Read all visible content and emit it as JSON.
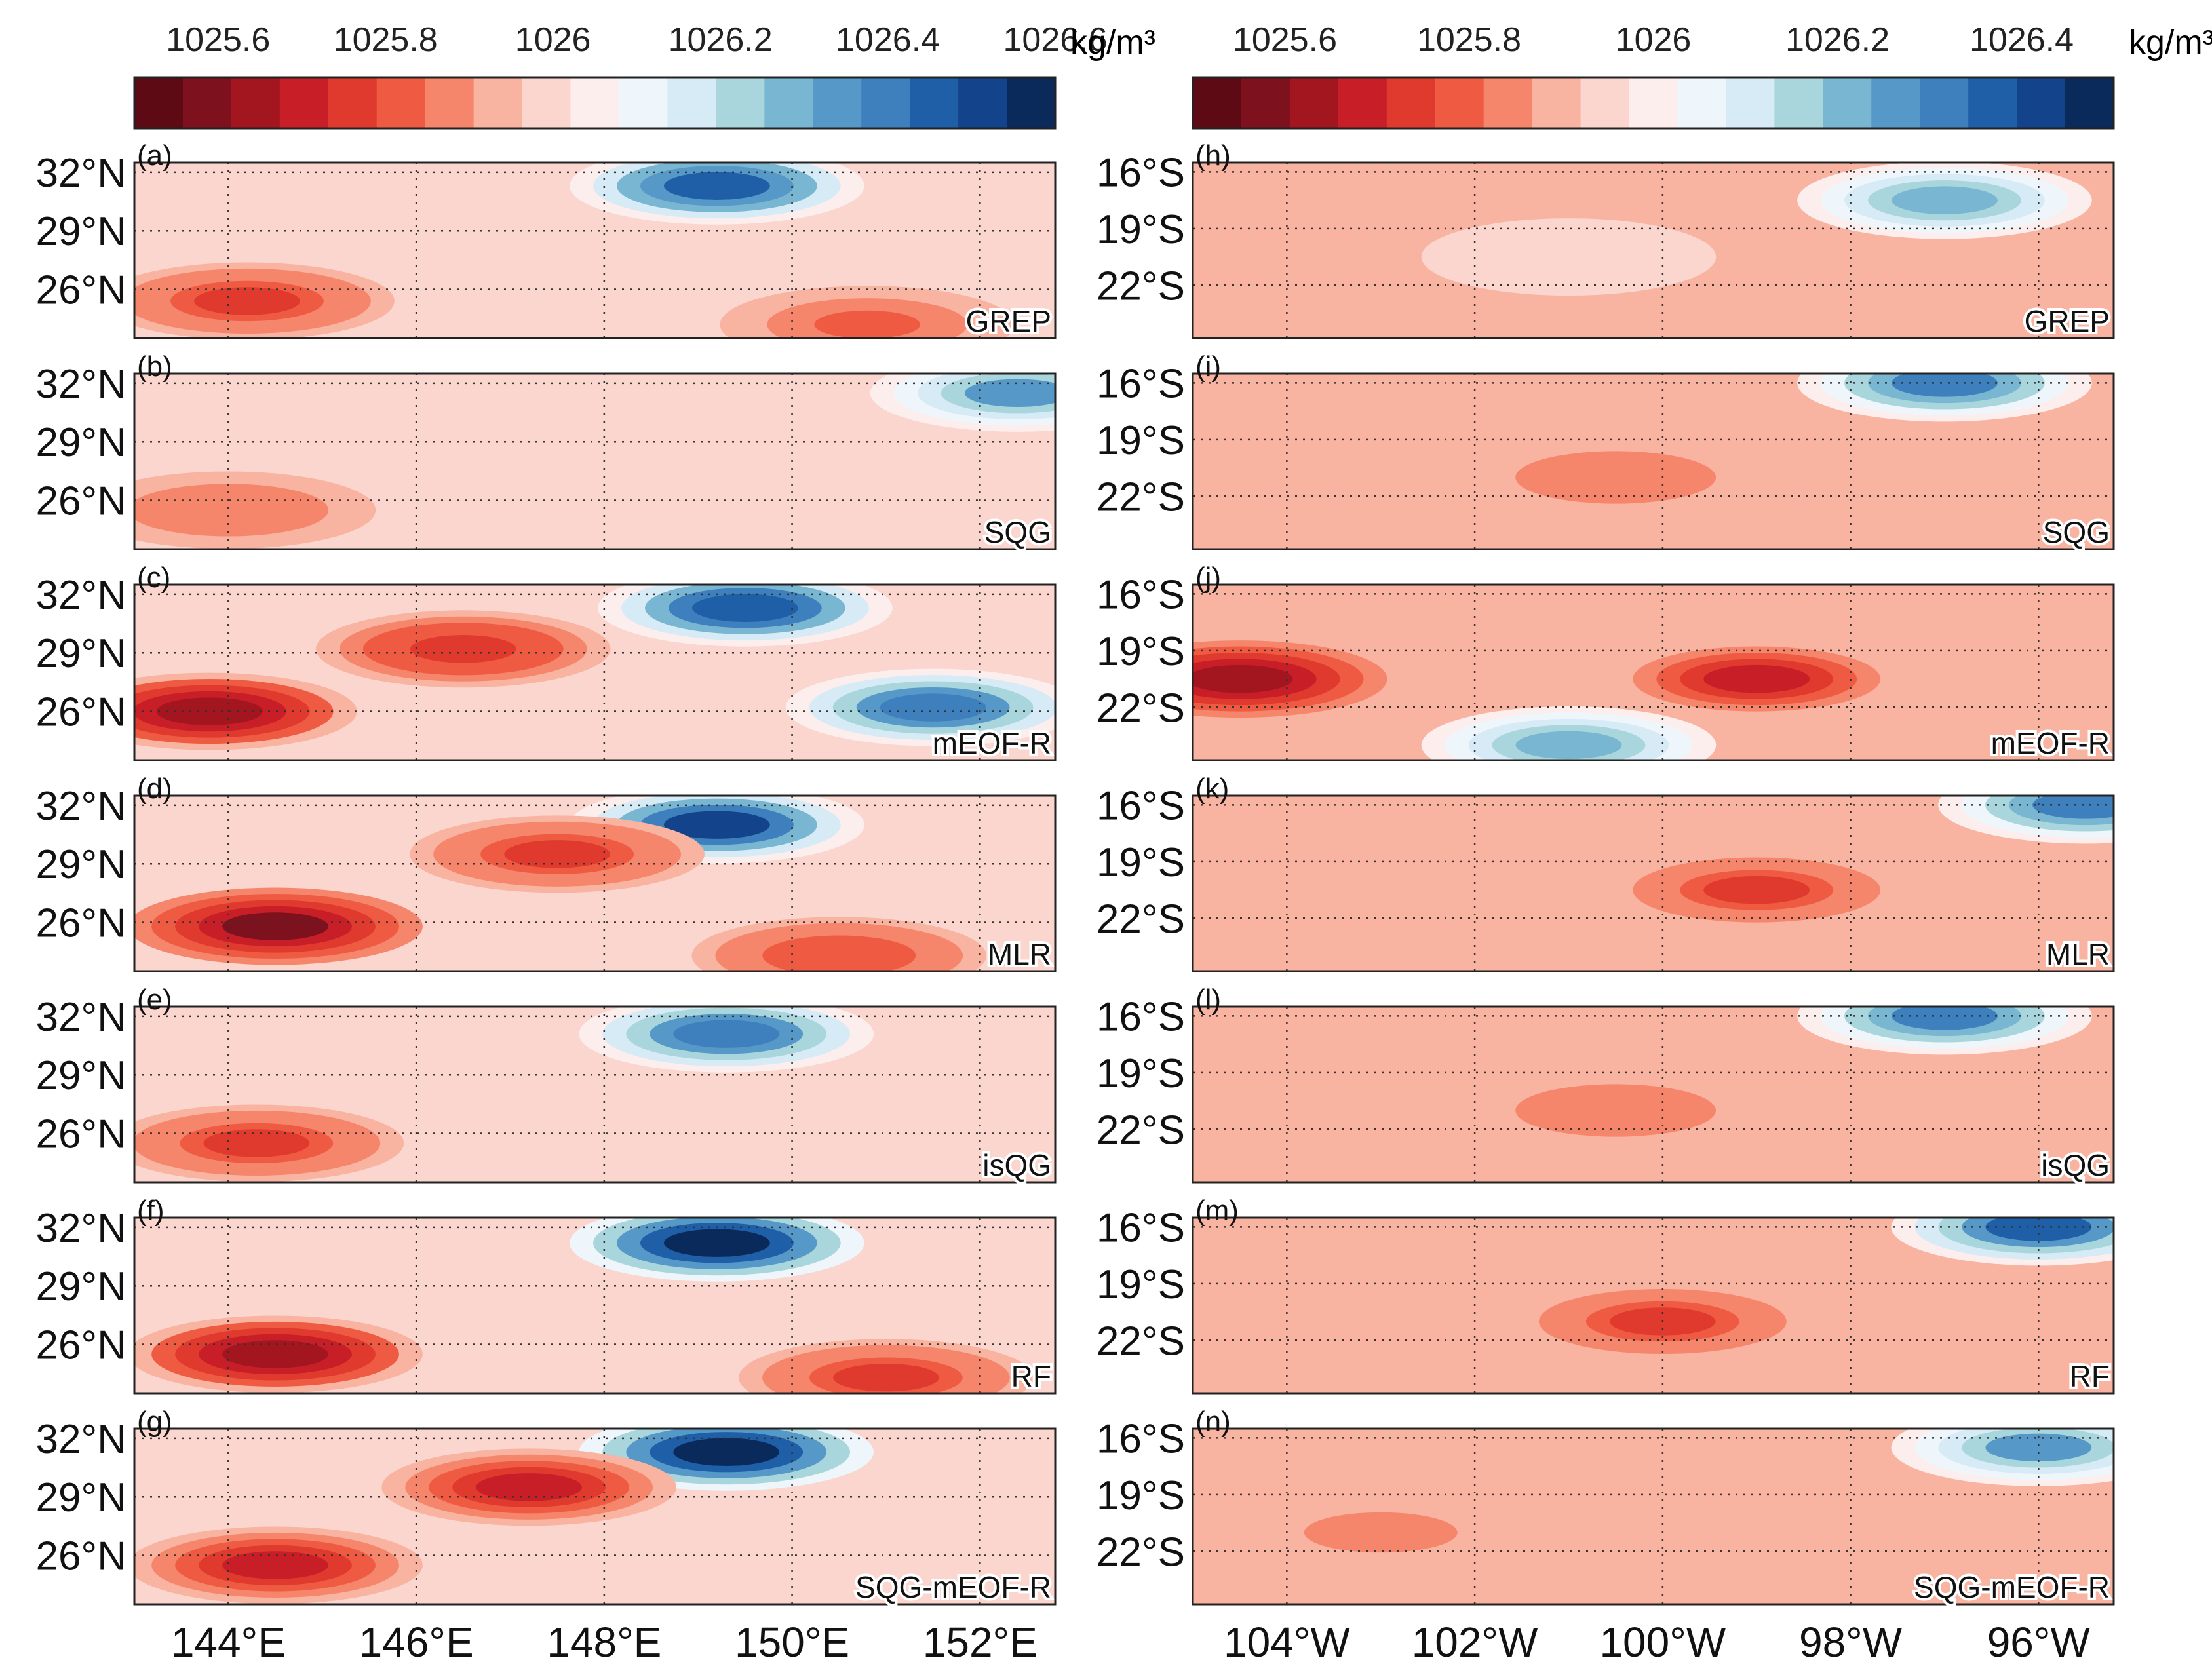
{
  "colorbar": {
    "unit": "kg/m³",
    "colors": [
      "#5e0a14",
      "#7d111d",
      "#a3161f",
      "#c81e27",
      "#e03a2f",
      "#ef5b42",
      "#f5856b",
      "#f8b3a1",
      "#fbd6cf",
      "#fdeeee",
      "#eef6fb",
      "#d6ebf5",
      "#a9d6dc",
      "#79b6d2",
      "#5699c8",
      "#3d80bd",
      "#1f5fa8",
      "#13438a",
      "#0a2a5c"
    ],
    "left": {
      "ticks": [
        1025.6,
        1025.8,
        1026,
        1026.2,
        1026.4,
        1026.6
      ],
      "tick_labels": [
        "1025.6",
        "1025.8",
        "1026",
        "1026.2",
        "1026.4",
        "1026.6"
      ],
      "min": 1025.5,
      "max": 1026.6
    },
    "right": {
      "ticks": [
        1025.6,
        1025.8,
        1026,
        1026.2,
        1026.4
      ],
      "tick_labels": [
        "1025.6",
        "1025.8",
        "1026",
        "1026.2",
        "1026.4"
      ],
      "min": 1025.5,
      "max": 1026.5
    }
  },
  "left_axes": {
    "x_ticks": [
      144,
      146,
      148,
      150,
      152
    ],
    "x_tick_labels": [
      "144°E",
      "146°E",
      "148°E",
      "150°E",
      "152°E"
    ],
    "y_ticks": [
      32,
      29,
      26
    ],
    "y_tick_labels": [
      "32°N",
      "29°N",
      "26°N"
    ]
  },
  "right_axes": {
    "x_ticks": [
      -104,
      -102,
      -100,
      -98,
      -96
    ],
    "x_tick_labels": [
      "104°W",
      "102°W",
      "100°W",
      "98°W",
      "96°W"
    ],
    "y_ticks": [
      -16,
      -19,
      -22
    ],
    "y_tick_labels": [
      "16°S",
      "19°S",
      "22°S"
    ]
  },
  "chart_data": [
    {
      "type": "heatmap",
      "panel": "(a)",
      "method": "GREP",
      "region": "left",
      "xlim": [
        143,
        152.8
      ],
      "ylim": [
        23.5,
        32.5
      ],
      "features": [
        {
          "lon": 149.2,
          "lat": 31.3,
          "value": 1026.45
        },
        {
          "lon": 144.2,
          "lat": 25.4,
          "value": 1025.78
        },
        {
          "lon": 150.8,
          "lat": 24.2,
          "value": 1025.82
        }
      ]
    },
    {
      "type": "heatmap",
      "panel": "(b)",
      "method": "SQG",
      "region": "left",
      "xlim": [
        143,
        152.8
      ],
      "ylim": [
        23.5,
        32.5
      ],
      "features": [
        {
          "lon": 152.4,
          "lat": 31.5,
          "value": 1026.32
        },
        {
          "lon": 144,
          "lat": 25.5,
          "value": 1025.86
        }
      ]
    },
    {
      "type": "heatmap",
      "panel": "(c)",
      "method": "mEOF-R",
      "region": "left",
      "xlim": [
        143,
        152.8
      ],
      "ylim": [
        23.5,
        32.5
      ],
      "features": [
        {
          "lon": 149.5,
          "lat": 31.3,
          "value": 1026.48
        },
        {
          "lon": 143.8,
          "lat": 26,
          "value": 1025.65
        },
        {
          "lon": 146.5,
          "lat": 29.2,
          "value": 1025.75
        },
        {
          "lon": 151.5,
          "lat": 26.2,
          "value": 1026.4
        }
      ]
    },
    {
      "type": "heatmap",
      "panel": "(d)",
      "method": "MLR",
      "region": "left",
      "xlim": [
        143,
        152.8
      ],
      "ylim": [
        23.5,
        32.5
      ],
      "features": [
        {
          "lon": 149.2,
          "lat": 31,
          "value": 1026.5
        },
        {
          "lon": 144.5,
          "lat": 25.8,
          "value": 1025.6
        },
        {
          "lon": 147.5,
          "lat": 29.5,
          "value": 1025.78
        },
        {
          "lon": 150.5,
          "lat": 24.3,
          "value": 1025.8
        }
      ]
    },
    {
      "type": "heatmap",
      "panel": "(e)",
      "method": "isQG",
      "region": "left",
      "xlim": [
        143,
        152.8
      ],
      "ylim": [
        23.5,
        32.5
      ],
      "features": [
        {
          "lon": 149.3,
          "lat": 31.1,
          "value": 1026.42
        },
        {
          "lon": 144.3,
          "lat": 25.5,
          "value": 1025.78
        }
      ]
    },
    {
      "type": "heatmap",
      "panel": "(f)",
      "method": "RF",
      "region": "left",
      "xlim": [
        143,
        152.8
      ],
      "ylim": [
        23.5,
        32.5
      ],
      "features": [
        {
          "lon": 149.2,
          "lat": 31.2,
          "value": 1026.6
        },
        {
          "lon": 144.5,
          "lat": 25.5,
          "value": 1025.65
        },
        {
          "lon": 151,
          "lat": 24.3,
          "value": 1025.78
        }
      ]
    },
    {
      "type": "heatmap",
      "panel": "(g)",
      "method": "SQG-mEOF-R",
      "region": "left",
      "xlim": [
        143,
        152.8
      ],
      "ylim": [
        23.5,
        32.5
      ],
      "features": [
        {
          "lon": 149.3,
          "lat": 31.3,
          "value": 1026.6
        },
        {
          "lon": 144.5,
          "lat": 25.5,
          "value": 1025.7
        },
        {
          "lon": 147.2,
          "lat": 29.5,
          "value": 1025.72
        }
      ]
    },
    {
      "type": "heatmap",
      "panel": "(h)",
      "method": "GREP",
      "region": "right",
      "xlim": [
        -105,
        -95.2
      ],
      "ylim": [
        -24.8,
        -15.5
      ],
      "features": [
        {
          "lon": -97,
          "lat": -17.5,
          "value": 1026.2
        },
        {
          "lon": -101,
          "lat": -20.5,
          "value": 1025.95
        }
      ]
    },
    {
      "type": "heatmap",
      "panel": "(i)",
      "method": "SQG",
      "region": "right",
      "xlim": [
        -105,
        -95.2
      ],
      "ylim": [
        -24.8,
        -15.5
      ],
      "features": [
        {
          "lon": -100.5,
          "lat": -21,
          "value": 1025.82
        },
        {
          "lon": -97,
          "lat": -16,
          "value": 1026.3
        }
      ]
    },
    {
      "type": "heatmap",
      "panel": "(j)",
      "method": "mEOF-R",
      "region": "right",
      "xlim": [
        -105,
        -95.2
      ],
      "ylim": [
        -24.8,
        -15.5
      ],
      "features": [
        {
          "lon": -104.5,
          "lat": -20.5,
          "value": 1025.65
        },
        {
          "lon": -99,
          "lat": -20.5,
          "value": 1025.7
        },
        {
          "lon": -101,
          "lat": -24,
          "value": 1026.2
        }
      ]
    },
    {
      "type": "heatmap",
      "panel": "(k)",
      "method": "MLR",
      "region": "right",
      "xlim": [
        -105,
        -95.2
      ],
      "ylim": [
        -24.8,
        -15.5
      ],
      "features": [
        {
          "lon": -99,
          "lat": -20.5,
          "value": 1025.75
        },
        {
          "lon": -95.5,
          "lat": -16,
          "value": 1026.3
        }
      ]
    },
    {
      "type": "heatmap",
      "panel": "(l)",
      "method": "isQG",
      "region": "right",
      "xlim": [
        -105,
        -95.2
      ],
      "ylim": [
        -24.8,
        -15.5
      ],
      "features": [
        {
          "lon": -100.5,
          "lat": -21,
          "value": 1025.82
        },
        {
          "lon": -97,
          "lat": -16,
          "value": 1026.3
        }
      ]
    },
    {
      "type": "heatmap",
      "panel": "(m)",
      "method": "RF",
      "region": "right",
      "xlim": [
        -105,
        -95.2
      ],
      "ylim": [
        -24.8,
        -15.5
      ],
      "features": [
        {
          "lon": -100,
          "lat": -21,
          "value": 1025.75
        },
        {
          "lon": -96,
          "lat": -16,
          "value": 1026.35
        }
      ]
    },
    {
      "type": "heatmap",
      "panel": "(n)",
      "method": "SQG-mEOF-R",
      "region": "right",
      "xlim": [
        -105,
        -95.2
      ],
      "ylim": [
        -24.8,
        -15.5
      ],
      "features": [
        {
          "lon": -103,
          "lat": -21,
          "value": 1025.85
        },
        {
          "lon": -96,
          "lat": -16.5,
          "value": 1026.25
        }
      ]
    }
  ]
}
